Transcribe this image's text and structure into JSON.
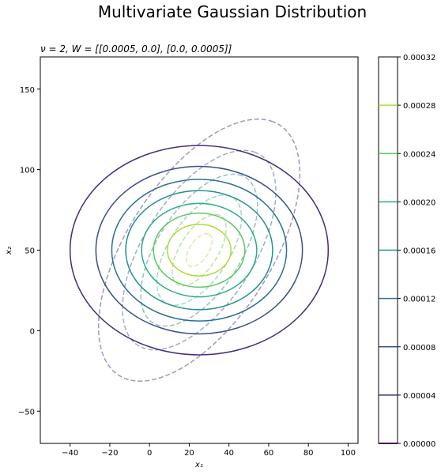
{
  "chart_data": {
    "type": "contour",
    "title": "Multivariate Gaussian Distribution",
    "subtitle": "ν = 2, W = [[0.0005, 0.0], [0.0, 0.0005]]",
    "xlabel": "x₁",
    "ylabel": "x₂",
    "xlim": [
      -55,
      105
    ],
    "ylim": [
      -70,
      170
    ],
    "xticks": [
      -40,
      -20,
      0,
      20,
      40,
      60,
      80,
      100
    ],
    "yticks": [
      -50,
      0,
      50,
      100,
      150
    ],
    "grid": false,
    "solid_contours": {
      "center": [
        25,
        50
      ],
      "ellipses": [
        {
          "rx": 65,
          "ry": 65,
          "color": "#472c7a"
        },
        {
          "rx": 52,
          "ry": 52,
          "color": "#3b518b"
        },
        {
          "rx": 44,
          "ry": 44,
          "color": "#2c728e"
        },
        {
          "rx": 37,
          "ry": 37,
          "color": "#21918c"
        },
        {
          "rx": 29,
          "ry": 29,
          "color": "#28ae80"
        },
        {
          "rx": 23,
          "ry": 23,
          "color": "#5ec962"
        },
        {
          "rx": 16,
          "ry": 16,
          "color": "#addc30"
        }
      ]
    },
    "dashed_contours": {
      "center": [
        25,
        50
      ],
      "angle_deg": 65,
      "ellipses": [
        {
          "a": 88,
          "b": 38,
          "color": "#8c7cae"
        },
        {
          "a": 67,
          "b": 29,
          "color": "#8a96b6"
        },
        {
          "a": 51,
          "b": 22,
          "color": "#7fb0b2"
        },
        {
          "a": 37,
          "b": 16,
          "color": "#8ecdb0"
        },
        {
          "a": 24,
          "b": 10,
          "color": "#a8dd8e"
        },
        {
          "a": 11,
          "b": 5,
          "color": "#d3e68a"
        }
      ]
    },
    "colorbar": {
      "vmin": 0.0,
      "vmax": 0.00032,
      "tick_labels": [
        "0.00000",
        "0.00004",
        "0.00008",
        "0.00012",
        "0.00016",
        "0.00020",
        "0.00024",
        "0.00028",
        "0.00032"
      ],
      "levels": [
        {
          "value": 4e-05,
          "color": "#472c7a"
        },
        {
          "value": 8e-05,
          "color": "#3b518b"
        },
        {
          "value": 0.00012,
          "color": "#2c728e"
        },
        {
          "value": 0.00016,
          "color": "#21918c"
        },
        {
          "value": 0.0002,
          "color": "#28ae80"
        },
        {
          "value": 0.00024,
          "color": "#5ec962"
        },
        {
          "value": 0.00028,
          "color": "#addc30"
        }
      ]
    }
  }
}
